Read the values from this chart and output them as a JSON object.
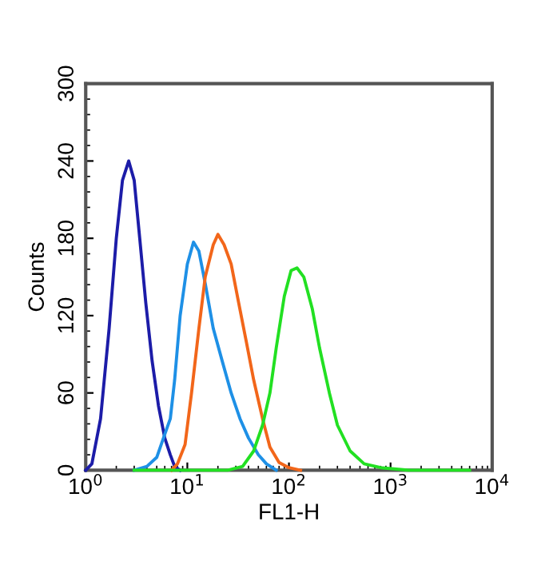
{
  "chart_data": {
    "type": "line",
    "xlabel": "FL1-H",
    "ylabel": "Counts",
    "log": "x",
    "xlim": [
      1,
      10000
    ],
    "xticks": [
      {
        "value": 1,
        "label": "10$^{0}$"
      },
      {
        "value": 10,
        "label": "10$^{1}$"
      },
      {
        "value": 100,
        "label": "10$^{2}$"
      },
      {
        "value": 1000,
        "label": "10$^{3}$"
      },
      {
        "value": 10000,
        "label": "10$^{4}$"
      }
    ],
    "ylim": [
      0,
      300
    ],
    "yticks": [
      0,
      60,
      120,
      180,
      240,
      300
    ],
    "grid": false,
    "marker": "none",
    "line_style": "solid",
    "series": [
      {
        "color": "#1c1ca8",
        "x": [
          1.0,
          1.15,
          1.4,
          1.7,
          2.0,
          2.3,
          2.65,
          3.0,
          3.4,
          3.9,
          4.5,
          5.2,
          6.0,
          6.8,
          7.5,
          8.5
        ],
        "values": [
          0,
          5,
          40,
          110,
          180,
          225,
          240,
          225,
          180,
          130,
          85,
          50,
          25,
          12,
          3,
          0
        ]
      },
      {
        "color": "#1e90e6",
        "x": [
          3,
          4,
          5,
          6,
          6.8,
          7.5,
          8.5,
          10,
          11.5,
          13,
          15,
          18,
          22,
          27,
          33,
          40,
          50,
          60,
          75
        ],
        "values": [
          0,
          3,
          10,
          28,
          40,
          70,
          120,
          160,
          177,
          170,
          145,
          110,
          85,
          60,
          40,
          25,
          12,
          5,
          0
        ]
      },
      {
        "color": "#f2661a",
        "x": [
          7,
          8,
          9.5,
          11,
          13,
          15,
          18,
          20,
          23,
          27,
          32,
          38,
          45,
          55,
          65,
          80,
          100,
          130
        ],
        "values": [
          0,
          5,
          20,
          60,
          110,
          150,
          175,
          183,
          175,
          160,
          130,
          100,
          70,
          40,
          18,
          6,
          2,
          0
        ]
      },
      {
        "color": "#22e022",
        "x": [
          3,
          25,
          35,
          45,
          55,
          65,
          75,
          90,
          105,
          120,
          140,
          170,
          200,
          250,
          300,
          400,
          550,
          800,
          1500,
          6000
        ],
        "values": [
          0,
          0,
          3,
          15,
          35,
          60,
          95,
          135,
          155,
          157,
          150,
          125,
          95,
          60,
          35,
          15,
          5,
          2,
          0,
          0
        ]
      }
    ]
  }
}
